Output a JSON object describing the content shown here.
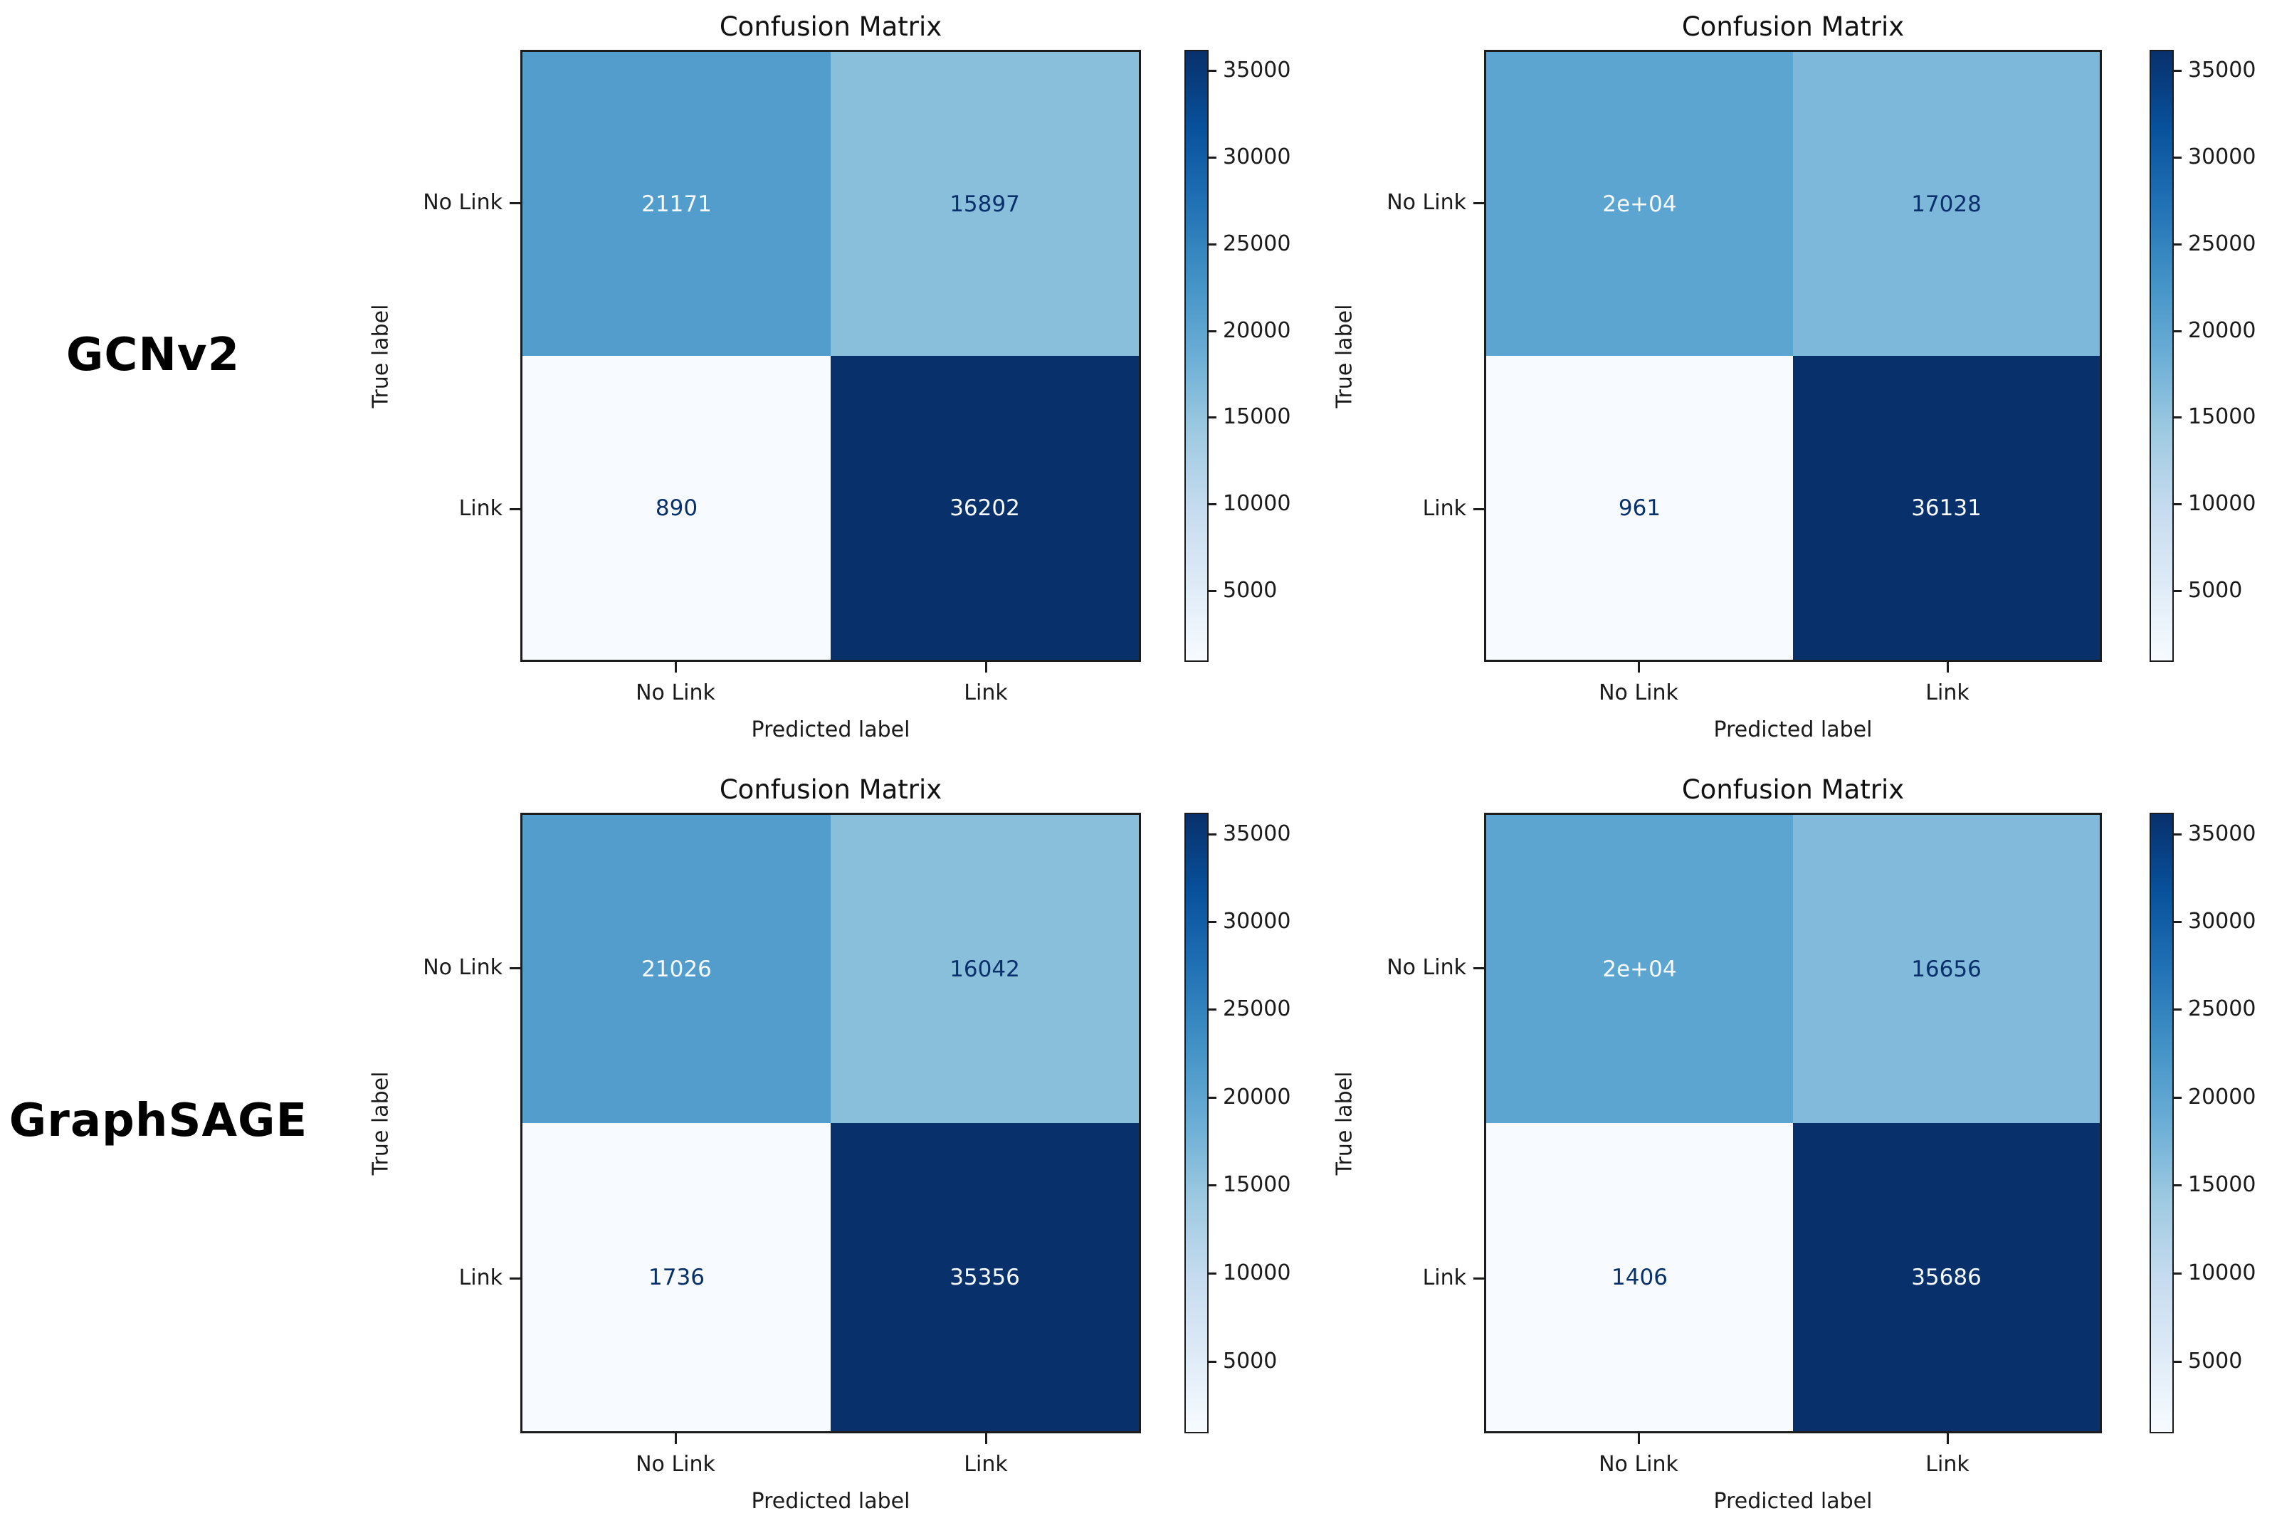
{
  "figure": {
    "title": "Confusion Matrix",
    "xlabel": "Predicted label",
    "ylabel": "True label",
    "classes": [
      "No Link",
      "Link"
    ],
    "colorbar_tick_labels": [
      "35000",
      "30000",
      "25000",
      "20000",
      "15000",
      "10000",
      "5000"
    ]
  },
  "row_labels": [
    "GCNv2",
    "GraphSAGE"
  ],
  "colors": {
    "heat_min": "#f7fbff",
    "heat_max": "#08306b",
    "cell_text_light": "#f7fbff",
    "cell_text_dark": "#08306b",
    "axis_text": "#1a1a1a"
  },
  "panels": [
    {
      "model": "GCNv2",
      "cells": [
        {
          "value": "21171",
          "bg": "#539dcc",
          "fg": "#f7fbff"
        },
        {
          "value": "15897",
          "bg": "#8abfdc",
          "fg": "#08306b"
        },
        {
          "value": "890",
          "bg": "#f7fbff",
          "fg": "#08306b"
        },
        {
          "value": "36202",
          "bg": "#08306b",
          "fg": "#f7fbff"
        }
      ]
    },
    {
      "model": "GCNv2",
      "cells": [
        {
          "value": "2e+04",
          "bg": "#5da5d1",
          "fg": "#f7fbff"
        },
        {
          "value": "17028",
          "bg": "#7db8da",
          "fg": "#08306b"
        },
        {
          "value": "961",
          "bg": "#f7fbff",
          "fg": "#08306b"
        },
        {
          "value": "36131",
          "bg": "#08306b",
          "fg": "#f7fbff"
        }
      ]
    },
    {
      "model": "GraphSAGE",
      "cells": [
        {
          "value": "21026",
          "bg": "#539dcc",
          "fg": "#f7fbff"
        },
        {
          "value": "16042",
          "bg": "#8abfdc",
          "fg": "#08306b"
        },
        {
          "value": "1736",
          "bg": "#f7fbff",
          "fg": "#08306b"
        },
        {
          "value": "35356",
          "bg": "#08306b",
          "fg": "#f7fbff"
        }
      ]
    },
    {
      "model": "GraphSAGE",
      "cells": [
        {
          "value": "2e+04",
          "bg": "#5da5d1",
          "fg": "#f7fbff"
        },
        {
          "value": "16656",
          "bg": "#81bada",
          "fg": "#08306b"
        },
        {
          "value": "1406",
          "bg": "#f7fbff",
          "fg": "#08306b"
        },
        {
          "value": "35686",
          "bg": "#08306b",
          "fg": "#f7fbff"
        }
      ]
    }
  ],
  "chart_data": [
    {
      "type": "heatmap",
      "model": "GCNv2",
      "title": "Confusion Matrix",
      "xlabel": "Predicted label",
      "ylabel": "True label",
      "x_categories": [
        "No Link",
        "Link"
      ],
      "y_categories": [
        "No Link",
        "Link"
      ],
      "values": [
        [
          21171,
          15897
        ],
        [
          890,
          36202
        ]
      ],
      "value_labels": [
        [
          "21171",
          "15897"
        ],
        [
          "890",
          "36202"
        ]
      ],
      "colormap": "Blues",
      "colorbar_ticks": [
        5000,
        10000,
        15000,
        20000,
        25000,
        30000,
        35000
      ],
      "colorbar_position": "right"
    },
    {
      "type": "heatmap",
      "model": "GCNv2",
      "title": "Confusion Matrix",
      "xlabel": "Predicted label",
      "ylabel": "True label",
      "x_categories": [
        "No Link",
        "Link"
      ],
      "y_categories": [
        "No Link",
        "Link"
      ],
      "values": [
        [
          20000,
          17028
        ],
        [
          961,
          36131
        ]
      ],
      "value_labels": [
        [
          "2e+04",
          "17028"
        ],
        [
          "961",
          "36131"
        ]
      ],
      "colormap": "Blues",
      "colorbar_ticks": [
        5000,
        10000,
        15000,
        20000,
        25000,
        30000,
        35000
      ],
      "colorbar_position": "right"
    },
    {
      "type": "heatmap",
      "model": "GraphSAGE",
      "title": "Confusion Matrix",
      "xlabel": "Predicted label",
      "ylabel": "True label",
      "x_categories": [
        "No Link",
        "Link"
      ],
      "y_categories": [
        "No Link",
        "Link"
      ],
      "values": [
        [
          21026,
          16042
        ],
        [
          1736,
          35356
        ]
      ],
      "value_labels": [
        [
          "21026",
          "16042"
        ],
        [
          "1736",
          "35356"
        ]
      ],
      "colormap": "Blues",
      "colorbar_ticks": [
        5000,
        10000,
        15000,
        20000,
        25000,
        30000,
        35000
      ],
      "colorbar_position": "right"
    },
    {
      "type": "heatmap",
      "model": "GraphSAGE",
      "title": "Confusion Matrix",
      "xlabel": "Predicted label",
      "ylabel": "True label",
      "x_categories": [
        "No Link",
        "Link"
      ],
      "y_categories": [
        "No Link",
        "Link"
      ],
      "values": [
        [
          20000,
          16656
        ],
        [
          1406,
          35686
        ]
      ],
      "value_labels": [
        [
          "2e+04",
          "16656"
        ],
        [
          "1406",
          "35686"
        ]
      ],
      "colormap": "Blues",
      "colorbar_ticks": [
        5000,
        10000,
        15000,
        20000,
        25000,
        30000,
        35000
      ],
      "colorbar_position": "right"
    }
  ]
}
